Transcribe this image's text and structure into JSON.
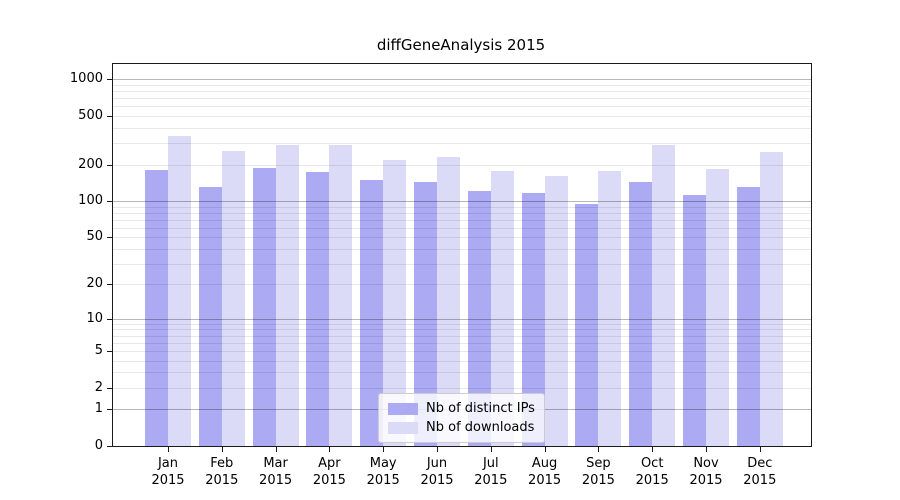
{
  "title": "diffGeneAnalysis 2015",
  "chart_data": {
    "type": "bar",
    "title": "diffGeneAnalysis 2015",
    "categories": [
      "Jan 2015",
      "Feb 2015",
      "Mar 2015",
      "Apr 2015",
      "May 2015",
      "Jun 2015",
      "Jul 2015",
      "Aug 2015",
      "Sep 2015",
      "Oct 2015",
      "Nov 2015",
      "Dec 2015"
    ],
    "series": [
      {
        "name": "Nb of distinct IPs",
        "color": "#abablue",
        "values": []
      },
      {
        "name": "Nb of downloads",
        "color": "#dbdbf8",
        "values": []
      }
    ],
    "xlabel": "",
    "ylabel": "",
    "yscale": "log10(value+1)",
    "yticks": [
      0,
      1,
      2,
      5,
      10,
      20,
      50,
      100,
      200,
      500,
      1000
    ],
    "ylim": [
      0,
      1360
    ],
    "grid": "minor log gridlines, darker lines at 1/10/100/1000",
    "legend_position": "lower center"
  },
  "colors": {
    "distinct_ips_bar": "#abaaf2",
    "downloads_bar": "#dbdbf8",
    "grid_minor": "rgba(0,0,0,0.09)",
    "grid_major": "rgba(0,0,0,0.28)",
    "spine": "#1a1a1a",
    "legend_border": "#cccccc",
    "background": "#ffffff"
  }
}
